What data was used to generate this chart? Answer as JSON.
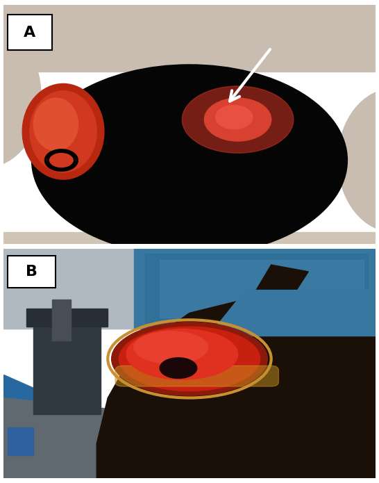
{
  "figsize": [
    5.46,
    6.95
  ],
  "dpi": 100,
  "background_color": "#ffffff",
  "panel_A": {
    "label": "A",
    "label_fontsize": 16,
    "label_fontweight": "bold",
    "label_box_color": "#ffffff",
    "arrow_color": "white",
    "bg_color": "#0a0a0a",
    "skin_color": "#c8bdb0",
    "left_lesion_colors": [
      "#b82810",
      "#d03820",
      "#e05030"
    ],
    "ring_color": "#000000",
    "right_lesion_colors": [
      "#c03020",
      "#d84030",
      "#e85040"
    ]
  },
  "panel_B": {
    "label": "B",
    "label_fontsize": 16,
    "label_fontweight": "bold",
    "label_box_color": "#ffffff",
    "bg_color": "#8090a0",
    "ceiling_color": "#b0b8c0",
    "blue_drape_color": "#3878a0",
    "blue_drape_dark": "#2868a0",
    "table_color": "#606870",
    "equip_color": "#303840",
    "equip_color2": "#282e38",
    "metal_color": "#484e58",
    "small_blue_color": "#3060a0",
    "body_color": "#1a1008",
    "wound_colors": [
      "#8b1a0a",
      "#c82010",
      "#e03020",
      "#e84030"
    ],
    "necrotic_color": "#c89020",
    "dark_center_color": "#1a0808",
    "wound_edge_color": "#c89030"
  },
  "border_color": "#000000",
  "border_linewidth": 1.0
}
